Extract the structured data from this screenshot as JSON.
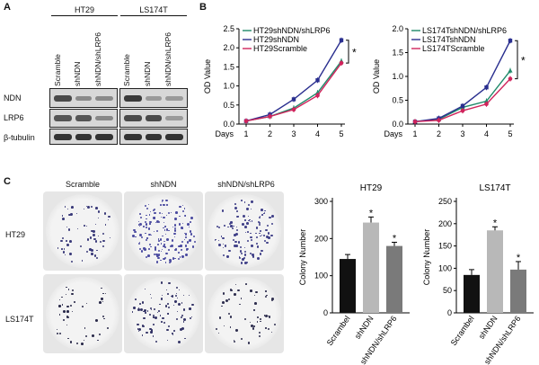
{
  "panel_a": {
    "letter": "A",
    "groups": [
      "HT29",
      "LS174T"
    ],
    "lanes": [
      "Scramble",
      "shNDN",
      "shNDN/shLRP6",
      "Scramble",
      "shNDN",
      "shNDN/shLRP6"
    ],
    "rows": [
      "NDN",
      "LRP6",
      "β-tubulin"
    ]
  },
  "panel_b": {
    "letter": "B",
    "star": "*",
    "x_prefix": "Days"
  },
  "panel_c": {
    "letter": "C",
    "columns": [
      "Scramble",
      "shNDN",
      "shNDN/shLRP6"
    ],
    "rows": [
      "HT29",
      "LS174T"
    ],
    "star": "*"
  },
  "colors": {
    "green": "#1f8a6a",
    "blue": "#2a2f8f",
    "red": "#d0245c",
    "dark": "#111111",
    "light": "#b8b8b8",
    "mid": "#7a7a7a"
  },
  "chart_data": [
    {
      "type": "line",
      "ylabel": "OD Value",
      "xlabel": "Days",
      "x": [
        1,
        2,
        3,
        4,
        5
      ],
      "ylim": [
        0,
        2.5
      ],
      "yticks": [
        "0.0",
        "0.5",
        "1.0",
        "1.5",
        "2.0",
        "2.5"
      ],
      "legend_position": "top-left",
      "series": [
        {
          "name": "HT29shNDN/shLRP6",
          "values": [
            0.08,
            0.2,
            0.42,
            0.82,
            1.65
          ]
        },
        {
          "name": "HT29shNDN",
          "values": [
            0.08,
            0.25,
            0.65,
            1.15,
            2.2
          ]
        },
        {
          "name": "HT29Scramble",
          "values": [
            0.08,
            0.2,
            0.38,
            0.75,
            1.6
          ]
        }
      ]
    },
    {
      "type": "line",
      "ylabel": "OD Value",
      "xlabel": "Days",
      "x": [
        1,
        2,
        3,
        4,
        5
      ],
      "ylim": [
        0,
        2.0
      ],
      "yticks": [
        "0.0",
        "0.5",
        "1.0",
        "1.5",
        "2.0"
      ],
      "legend_position": "top-left",
      "series": [
        {
          "name": "LS174TshNDN/shLRP6",
          "values": [
            0.05,
            0.1,
            0.35,
            0.48,
            1.12
          ]
        },
        {
          "name": "LS174TshNDN",
          "values": [
            0.05,
            0.12,
            0.38,
            0.77,
            1.75
          ]
        },
        {
          "name": "LS174TScramble",
          "values": [
            0.05,
            0.08,
            0.28,
            0.42,
            0.95
          ]
        }
      ]
    },
    {
      "type": "bar",
      "title": "HT29",
      "ylabel": "Colony Number",
      "categories": [
        "Scrambel",
        "shNDN",
        "shNDN/shLRP6"
      ],
      "values": [
        145,
        243,
        180
      ],
      "errors": [
        12,
        15,
        10
      ],
      "ylim": [
        0,
        300
      ],
      "yticks": [
        "0",
        "100",
        "200",
        "300"
      ],
      "starred": [
        false,
        true,
        true
      ]
    },
    {
      "type": "bar",
      "title": "LS174T",
      "ylabel": "Colony Number",
      "categories": [
        "Scrambel",
        "shNDN",
        "shNDN/shLRP6"
      ],
      "values": [
        85,
        185,
        97
      ],
      "errors": [
        12,
        8,
        18
      ],
      "ylim": [
        0,
        250
      ],
      "yticks": [
        "0",
        "50",
        "100",
        "150",
        "200",
        "250"
      ],
      "starred": [
        false,
        true,
        true
      ]
    }
  ]
}
